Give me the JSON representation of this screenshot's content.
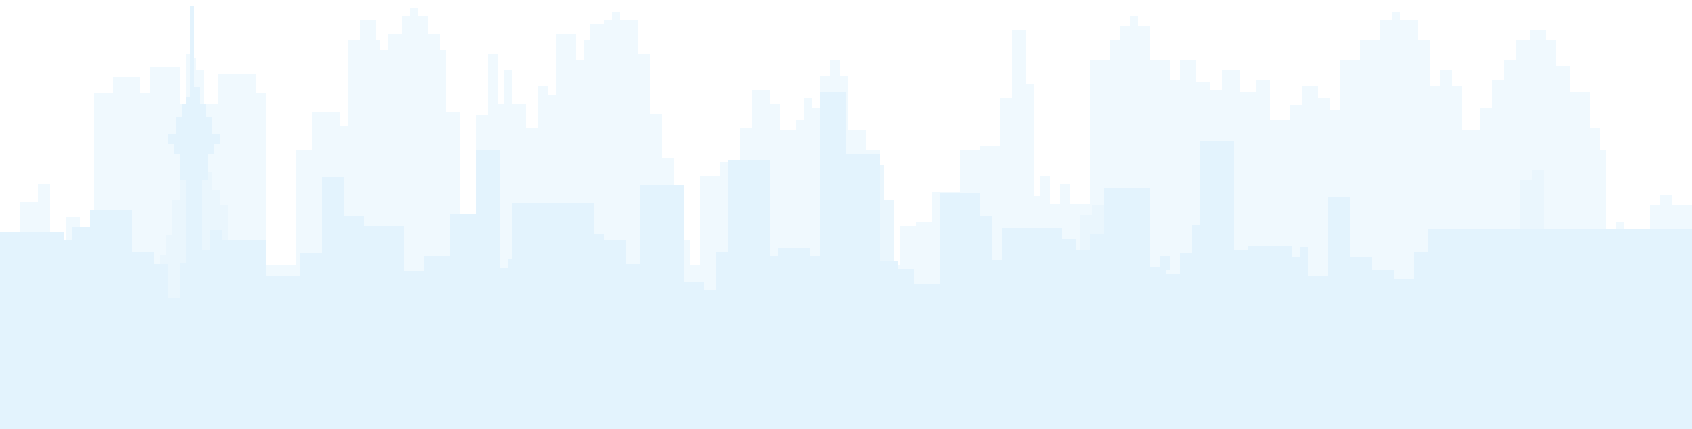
{
  "illustration": {
    "subject": "city-skyline-silhouette",
    "colors": {
      "background": "#ffffff",
      "back_layer": "#f0f9fe",
      "front_layer": "#e3f3fd"
    }
  }
}
